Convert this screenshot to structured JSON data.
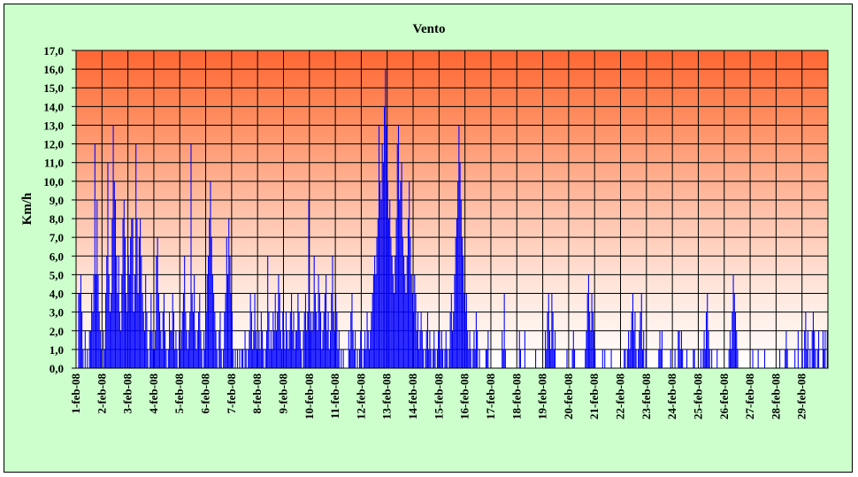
{
  "chart_data": {
    "type": "bar",
    "title": "Vento",
    "xlabel": "",
    "ylabel": "Km/h",
    "ylim": [
      0,
      17
    ],
    "y_step": 1,
    "y_tick_labels": [
      "0,0",
      "1,0",
      "2,0",
      "3,0",
      "4,0",
      "5,0",
      "6,0",
      "7,0",
      "8,0",
      "9,0",
      "10,0",
      "11,0",
      "12,0",
      "13,0",
      "14,0",
      "15,0",
      "16,0",
      "17,0"
    ],
    "categories": [
      "1-feb-08",
      "2-feb-08",
      "3-feb-08",
      "4-feb-08",
      "5-feb-08",
      "6-feb-08",
      "7-feb-08",
      "8-feb-08",
      "9-feb-08",
      "10-feb-08",
      "11-feb-08",
      "12-feb-08",
      "13-feb-08",
      "14-feb-08",
      "15-feb-08",
      "16-feb-08",
      "17-feb-08",
      "18-feb-08",
      "19-feb-08",
      "20-feb-08",
      "21-feb-08",
      "22-feb-08",
      "23-feb-08",
      "24-feb-08",
      "25-feb-08",
      "26-feb-08",
      "27-feb-08",
      "28-feb-08",
      "29-feb-08"
    ],
    "grid": true,
    "legend": "none",
    "colors": {
      "bars": "#0000ff",
      "plot_top": "#ff6633",
      "plot_bottom": "#ffffff",
      "background": "#ccffcc"
    },
    "series": [
      {
        "daily_values": [
          [
            0,
            0,
            4,
            4,
            5,
            3,
            1,
            0,
            2,
            0,
            1,
            0,
            2,
            2,
            4,
            3,
            5,
            12,
            5,
            9,
            5,
            3,
            2,
            1
          ],
          [
            0,
            2,
            1,
            4,
            6,
            11,
            5,
            3,
            4,
            8,
            13,
            10,
            9,
            6,
            4,
            6,
            3,
            2,
            5,
            8,
            9,
            7,
            4,
            3
          ],
          [
            6,
            5,
            7,
            8,
            8,
            3,
            5,
            12,
            8,
            4,
            7,
            8,
            6,
            4,
            3,
            2,
            5,
            3,
            1,
            0,
            2,
            4,
            2,
            1
          ],
          [
            1,
            2,
            6,
            7,
            4,
            3,
            2,
            1,
            3,
            4,
            2,
            1,
            0,
            1,
            3,
            2,
            2,
            4,
            3,
            1,
            2,
            1,
            0,
            2
          ],
          [
            1,
            2,
            3,
            4,
            6,
            3,
            2,
            1,
            2,
            3,
            12,
            4,
            3,
            5,
            2,
            1,
            2,
            3,
            4,
            2,
            1,
            0,
            2,
            1
          ],
          [
            3,
            5,
            6,
            8,
            10,
            7,
            5,
            4,
            3,
            2,
            1,
            0,
            2,
            3,
            1,
            0,
            1,
            3,
            4,
            7,
            5,
            8,
            6,
            4
          ],
          [
            3,
            1,
            0,
            1,
            0,
            1,
            0,
            1,
            0,
            1,
            1,
            0,
            2,
            1,
            0,
            1,
            2,
            4,
            3,
            1,
            2,
            4,
            2,
            1
          ],
          [
            1,
            2,
            1,
            3,
            2,
            1,
            0,
            1,
            2,
            6,
            3,
            1,
            2,
            1,
            3,
            2,
            4,
            2,
            3,
            5,
            4,
            2,
            1,
            3
          ],
          [
            2,
            1,
            3,
            2,
            1,
            2,
            3,
            4,
            2,
            3,
            1,
            2,
            2,
            4,
            3,
            2,
            1,
            0,
            2,
            3,
            4,
            2,
            3,
            9
          ],
          [
            2,
            3,
            2,
            3,
            6,
            4,
            3,
            2,
            5,
            4,
            3,
            1,
            2,
            3,
            4,
            5,
            2,
            3,
            1,
            2,
            4,
            6,
            3,
            2
          ],
          [
            4,
            3,
            1,
            2,
            0,
            1,
            0,
            1,
            0,
            0,
            0,
            0,
            2,
            1,
            3,
            4,
            2,
            1,
            2,
            0,
            1,
            0,
            1,
            2
          ],
          [
            1,
            0,
            1,
            2,
            1,
            3,
            2,
            1,
            2,
            3,
            4,
            5,
            6,
            5,
            7,
            8,
            13,
            10,
            9,
            12,
            11,
            14,
            16,
            13
          ],
          [
            10,
            8,
            9,
            7,
            6,
            5,
            4,
            6,
            8,
            12,
            13,
            9,
            10,
            11,
            7,
            6,
            5,
            4,
            6,
            8,
            10,
            7,
            5,
            4
          ],
          [
            3,
            5,
            4,
            2,
            3,
            1,
            2,
            3,
            2,
            1,
            0,
            1,
            2,
            3,
            1,
            2,
            1,
            0,
            1,
            2,
            1,
            0,
            1,
            2
          ],
          [
            2,
            1,
            2,
            1,
            0,
            1,
            2,
            1,
            0,
            1,
            3,
            4,
            2,
            3,
            5,
            7,
            8,
            10,
            13,
            11,
            9,
            7,
            6,
            4
          ],
          [
            3,
            4,
            2,
            1,
            2,
            1,
            0,
            1,
            2,
            1,
            3,
            2,
            0,
            1,
            0,
            0,
            0,
            0,
            0,
            1,
            1,
            2,
            0,
            0
          ],
          [
            0,
            0,
            0,
            0,
            0,
            0,
            0,
            0,
            0,
            0,
            2,
            1,
            4,
            1,
            0,
            0,
            0,
            0,
            0,
            0,
            0,
            0,
            0,
            0
          ],
          [
            0,
            0,
            2,
            1,
            0,
            0,
            0,
            2,
            0,
            0,
            0,
            0,
            0,
            0,
            0,
            0,
            0,
            1,
            0,
            0,
            0,
            0,
            0,
            0
          ],
          [
            0,
            0,
            2,
            1,
            3,
            4,
            2,
            1,
            4,
            3,
            1,
            2,
            0,
            0,
            0,
            0,
            0,
            0,
            0,
            0,
            0,
            0,
            1,
            0
          ],
          [
            0,
            0,
            0,
            1,
            2,
            1,
            0,
            0,
            0,
            0,
            0,
            0,
            0,
            0,
            0,
            1,
            2,
            4,
            5,
            3,
            2,
            4,
            3,
            2
          ],
          [
            1,
            0,
            0,
            0,
            0,
            0,
            0,
            1,
            0,
            1,
            0,
            0,
            0,
            0,
            0,
            1,
            0,
            0,
            0,
            0,
            0,
            0,
            0,
            0
          ],
          [
            0,
            0,
            0,
            1,
            1,
            0,
            1,
            2,
            1,
            2,
            3,
            4,
            2,
            3,
            1,
            0,
            1,
            2,
            3,
            4,
            1,
            2,
            0,
            1
          ],
          [
            0,
            0,
            0,
            0,
            0,
            0,
            0,
            0,
            0,
            0,
            0,
            1,
            2,
            1,
            2,
            0,
            0,
            0,
            0,
            0,
            0,
            0,
            1,
            0
          ],
          [
            0,
            0,
            1,
            0,
            0,
            2,
            2,
            1,
            2,
            1,
            0,
            0,
            0,
            1,
            0,
            0,
            0,
            0,
            0,
            1,
            1,
            0,
            0,
            0
          ],
          [
            0,
            0,
            1,
            0,
            1,
            2,
            1,
            3,
            4,
            2,
            1,
            0,
            1,
            0,
            0,
            0,
            0,
            1,
            0,
            0,
            0,
            0,
            0,
            0
          ],
          [
            0,
            0,
            0,
            0,
            1,
            2,
            1,
            3,
            5,
            4,
            3,
            2,
            1,
            0,
            0,
            0,
            0,
            0,
            0,
            0,
            0,
            0,
            0,
            0
          ],
          [
            0,
            0,
            1,
            0,
            0,
            0,
            0,
            1,
            0,
            0,
            0,
            0,
            0,
            1,
            0,
            0,
            0,
            0,
            0,
            0,
            0,
            0,
            0,
            0
          ],
          [
            0,
            0,
            0,
            1,
            0,
            0,
            0,
            0,
            1,
            2,
            1,
            0,
            0,
            0,
            0,
            0,
            0,
            1,
            0,
            0,
            2,
            0,
            0,
            0
          ],
          [
            1,
            0,
            2,
            3,
            1,
            2,
            0,
            1,
            0,
            2,
            3,
            2,
            1,
            0,
            1,
            2,
            0,
            0,
            0,
            2,
            1,
            2,
            0,
            2
          ]
        ]
      }
    ]
  }
}
